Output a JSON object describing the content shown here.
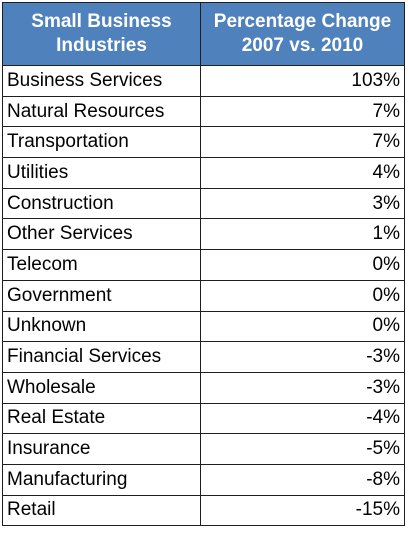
{
  "colors": {
    "header_bg": "#4f81bd",
    "header_text": "#ffffff",
    "border": "#1f1f1f"
  },
  "chart_data": {
    "type": "table",
    "columns": [
      "Small Business Industries",
      "Percentage Change 2007 vs. 2010"
    ],
    "header_lines": [
      [
        "Small Business",
        "Industries"
      ],
      [
        "Percentage Change",
        "2007 vs. 2010"
      ]
    ],
    "rows": [
      {
        "industry": "Business Services",
        "change": "103%"
      },
      {
        "industry": "Natural Resources",
        "change": "7%"
      },
      {
        "industry": "Transportation",
        "change": "7%"
      },
      {
        "industry": "Utilities",
        "change": "4%"
      },
      {
        "industry": "Construction",
        "change": "3%"
      },
      {
        "industry": "Other Services",
        "change": "1%"
      },
      {
        "industry": "Telecom",
        "change": "0%"
      },
      {
        "industry": "Government",
        "change": "0%"
      },
      {
        "industry": "Unknown",
        "change": "0%"
      },
      {
        "industry": "Financial Services",
        "change": "-3%"
      },
      {
        "industry": "Wholesale",
        "change": "-3%"
      },
      {
        "industry": "Real Estate",
        "change": "-4%"
      },
      {
        "industry": "Insurance",
        "change": "-5%"
      },
      {
        "industry": "Manufacturing",
        "change": "-8%"
      },
      {
        "industry": "Retail",
        "change": "-15%"
      }
    ]
  }
}
